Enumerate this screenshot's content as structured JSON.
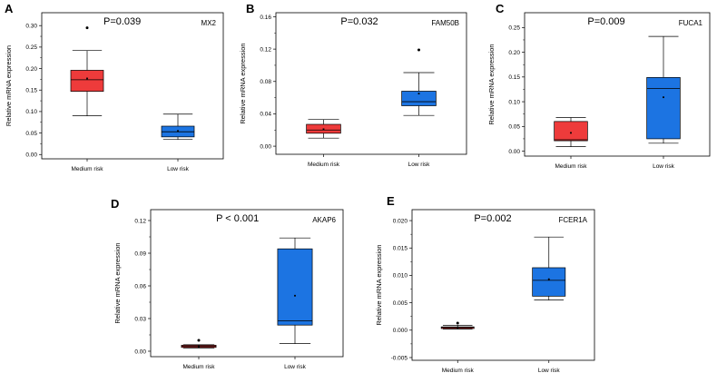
{
  "figure_colors": {
    "medium": "#ee3b3b",
    "low": "#1c74e2",
    "medium_dark": "#b32424",
    "frame": "#000000"
  },
  "chart_data": [
    {
      "type": "box",
      "panel": "A",
      "title": "MX2",
      "pvalue": "P=0.039",
      "ylabel": "Relative mRNA expression",
      "ylim": [
        -0.01,
        0.33
      ],
      "yticks": [
        "0.00",
        "0.05",
        "0.10",
        "0.15",
        "0.20",
        "0.25",
        "0.30"
      ],
      "categories": [
        "Medium risk",
        "Low risk"
      ],
      "boxes": [
        {
          "min": 0.09,
          "q1": 0.147,
          "median": 0.174,
          "q3": 0.196,
          "max": 0.242,
          "mean": 0.177,
          "outliers": [
            0.295
          ],
          "color": "#ee3b3b"
        },
        {
          "min": 0.035,
          "q1": 0.041,
          "median": 0.053,
          "q3": 0.066,
          "max": 0.094,
          "mean": 0.055,
          "outliers": [],
          "color": "#1c74e2"
        }
      ]
    },
    {
      "type": "box",
      "panel": "B",
      "title": "FAM50B",
      "pvalue": "P=0.032",
      "ylabel": "Relative mRNA expression",
      "ylim": [
        -0.01,
        0.165
      ],
      "yticks": [
        "0.00",
        "0.04",
        "0.08",
        "0.12",
        "0.16"
      ],
      "categories": [
        "Medium risk",
        "Low risk"
      ],
      "boxes": [
        {
          "min": 0.01,
          "q1": 0.016,
          "median": 0.02,
          "q3": 0.027,
          "max": 0.033,
          "mean": 0.021,
          "outliers": [],
          "color": "#ee3b3b"
        },
        {
          "min": 0.038,
          "q1": 0.05,
          "median": 0.055,
          "q3": 0.068,
          "max": 0.091,
          "mean": 0.065,
          "outliers": [
            0.119
          ],
          "color": "#1c74e2"
        }
      ]
    },
    {
      "type": "box",
      "panel": "C",
      "title": "FUCA1",
      "pvalue": "P=0.009",
      "ylabel": "Relative mRNA expression",
      "ylim": [
        -0.01,
        0.28
      ],
      "yticks": [
        "0.00",
        "0.05",
        "0.10",
        "0.15",
        "0.20",
        "0.25"
      ],
      "categories": [
        "Medium risk",
        "Low risk"
      ],
      "boxes": [
        {
          "min": 0.009,
          "q1": 0.021,
          "median": 0.023,
          "q3": 0.06,
          "max": 0.068,
          "mean": 0.037,
          "outliers": [],
          "color": "#ee3b3b"
        },
        {
          "min": 0.016,
          "q1": 0.025,
          "median": 0.127,
          "q3": 0.149,
          "max": 0.232,
          "mean": 0.109,
          "outliers": [],
          "color": "#1c74e2"
        }
      ]
    },
    {
      "type": "box",
      "panel": "D",
      "title": "AKAP6",
      "pvalue": "P < 0.001",
      "ylabel": "Relative mRNA expression",
      "ylim": [
        -0.005,
        0.13
      ],
      "yticks": [
        "0.00",
        "0.03",
        "0.06",
        "0.09",
        "0.12"
      ],
      "categories": [
        "Medium risk",
        "Low risk"
      ],
      "boxes": [
        {
          "min": 0.003,
          "q1": 0.0035,
          "median": 0.0045,
          "q3": 0.0055,
          "max": 0.006,
          "mean": 0.0045,
          "outliers": [
            0.01
          ],
          "color": "#ee3b3b"
        },
        {
          "min": 0.007,
          "q1": 0.024,
          "median": 0.028,
          "q3": 0.094,
          "max": 0.104,
          "mean": 0.051,
          "outliers": [],
          "color": "#1c74e2"
        }
      ]
    },
    {
      "type": "box",
      "panel": "E",
      "title": "FCER1A",
      "pvalue": "P=0.002",
      "ylabel": "Relative mRNA expression",
      "ylim": [
        -0.0055,
        0.022
      ],
      "yticks": [
        "-0.005",
        "0.000",
        "0.005",
        "0.010",
        "0.015",
        "0.020"
      ],
      "categories": [
        "Medium risk",
        "Low risk"
      ],
      "boxes": [
        {
          "min": 0.0002,
          "q1": 0.0003,
          "median": 0.0005,
          "q3": 0.0006,
          "max": 0.0009,
          "mean": 0.0005,
          "outliers": [
            0.0013
          ],
          "color": "#ee3b3b"
        },
        {
          "min": 0.0055,
          "q1": 0.0062,
          "median": 0.0091,
          "q3": 0.0114,
          "max": 0.017,
          "mean": 0.0093,
          "outliers": [],
          "color": "#1c74e2"
        }
      ]
    }
  ]
}
